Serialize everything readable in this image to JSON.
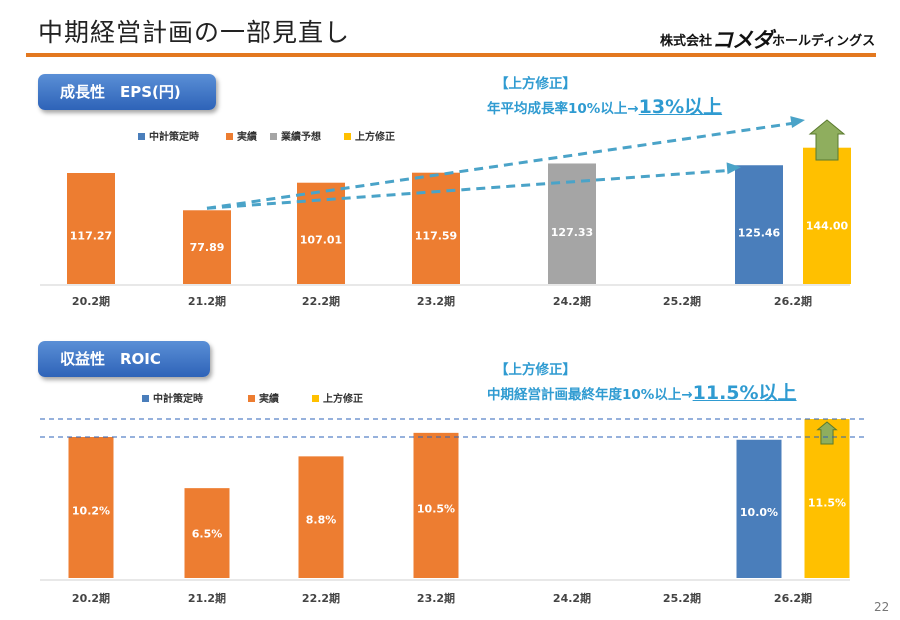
{
  "page": {
    "title": "中期経営計画の一部見直し",
    "logo_prefix": "株式会社",
    "logo_brand": "コメダ",
    "logo_suffix": "ホールディングス",
    "page_number": "22"
  },
  "colors": {
    "accent_rule": "#e3781f",
    "plan": "#4a7ebb",
    "actual": "#ed7d31",
    "forecast": "#a5a5a5",
    "upward": "#ffc000",
    "note_text": "#2f9bd1",
    "arrow_fill": "#8fae5e"
  },
  "eps_section": {
    "badge": "成長性　EPS(円)",
    "note_line1": "【上方修正】",
    "note_line2": "年平均成長率10%以上→",
    "note_emphasis": "13%以上"
  },
  "roic_section": {
    "badge": "収益性　ROIC",
    "note_line1": "【上方修正】",
    "note_line2": "中期経営計画最終年度10%以上→",
    "note_emphasis": "11.5%以上"
  },
  "chart_data": [
    {
      "type": "bar",
      "title": "成長性　EPS(円)",
      "categories": [
        "20.2期",
        "21.2期",
        "22.2期",
        "23.2期",
        "24.2期",
        "25.2期",
        "26.2期"
      ],
      "legend": [
        {
          "name": "中計策定時",
          "key": "plan"
        },
        {
          "name": "実績",
          "key": "actual"
        },
        {
          "name": "業績予想",
          "key": "forecast"
        },
        {
          "name": "上方修正",
          "key": "upward"
        }
      ],
      "bars": [
        {
          "category": "20.2期",
          "series": "actual",
          "value": 117.27,
          "label": "117.27"
        },
        {
          "category": "21.2期",
          "series": "actual",
          "value": 77.89,
          "label": "77.89"
        },
        {
          "category": "22.2期",
          "series": "actual",
          "value": 107.01,
          "label": "107.01"
        },
        {
          "category": "23.2期",
          "series": "actual",
          "value": 117.59,
          "label": "117.59"
        },
        {
          "category": "24.2期",
          "series": "forecast",
          "value": 127.33,
          "label": "127.33"
        },
        {
          "category": "26.2期",
          "series": "plan",
          "value": 125.46,
          "label": "125.46"
        },
        {
          "category": "26.2期",
          "series": "upward",
          "value": 144.0,
          "label": "144.00"
        }
      ],
      "trend_arrows": [
        {
          "from": "21.2期",
          "to": "26.2期 中計策定時"
        },
        {
          "from": "21.2期",
          "to": "26.2期 上方修正"
        }
      ],
      "ylim": [
        0,
        150
      ]
    },
    {
      "type": "bar",
      "title": "収益性　ROIC",
      "categories": [
        "20.2期",
        "21.2期",
        "22.2期",
        "23.2期",
        "24.2期",
        "25.2期",
        "26.2期"
      ],
      "legend": [
        {
          "name": "中計策定時",
          "key": "plan"
        },
        {
          "name": "実績",
          "key": "actual"
        },
        {
          "name": "上方修正",
          "key": "upward"
        }
      ],
      "bars": [
        {
          "category": "20.2期",
          "series": "actual",
          "value": 10.2,
          "label": "10.2%"
        },
        {
          "category": "21.2期",
          "series": "actual",
          "value": 6.5,
          "label": "6.5%"
        },
        {
          "category": "22.2期",
          "series": "actual",
          "value": 8.8,
          "label": "8.8%"
        },
        {
          "category": "23.2期",
          "series": "actual",
          "value": 10.5,
          "label": "10.5%"
        },
        {
          "category": "26.2期",
          "series": "plan",
          "value": 10.0,
          "label": "10.0%"
        },
        {
          "category": "26.2期",
          "series": "upward",
          "value": 11.5,
          "label": "11.5%"
        }
      ],
      "reference_lines": [
        10.2,
        11.5
      ],
      "ylim": [
        0,
        11.8
      ]
    }
  ]
}
